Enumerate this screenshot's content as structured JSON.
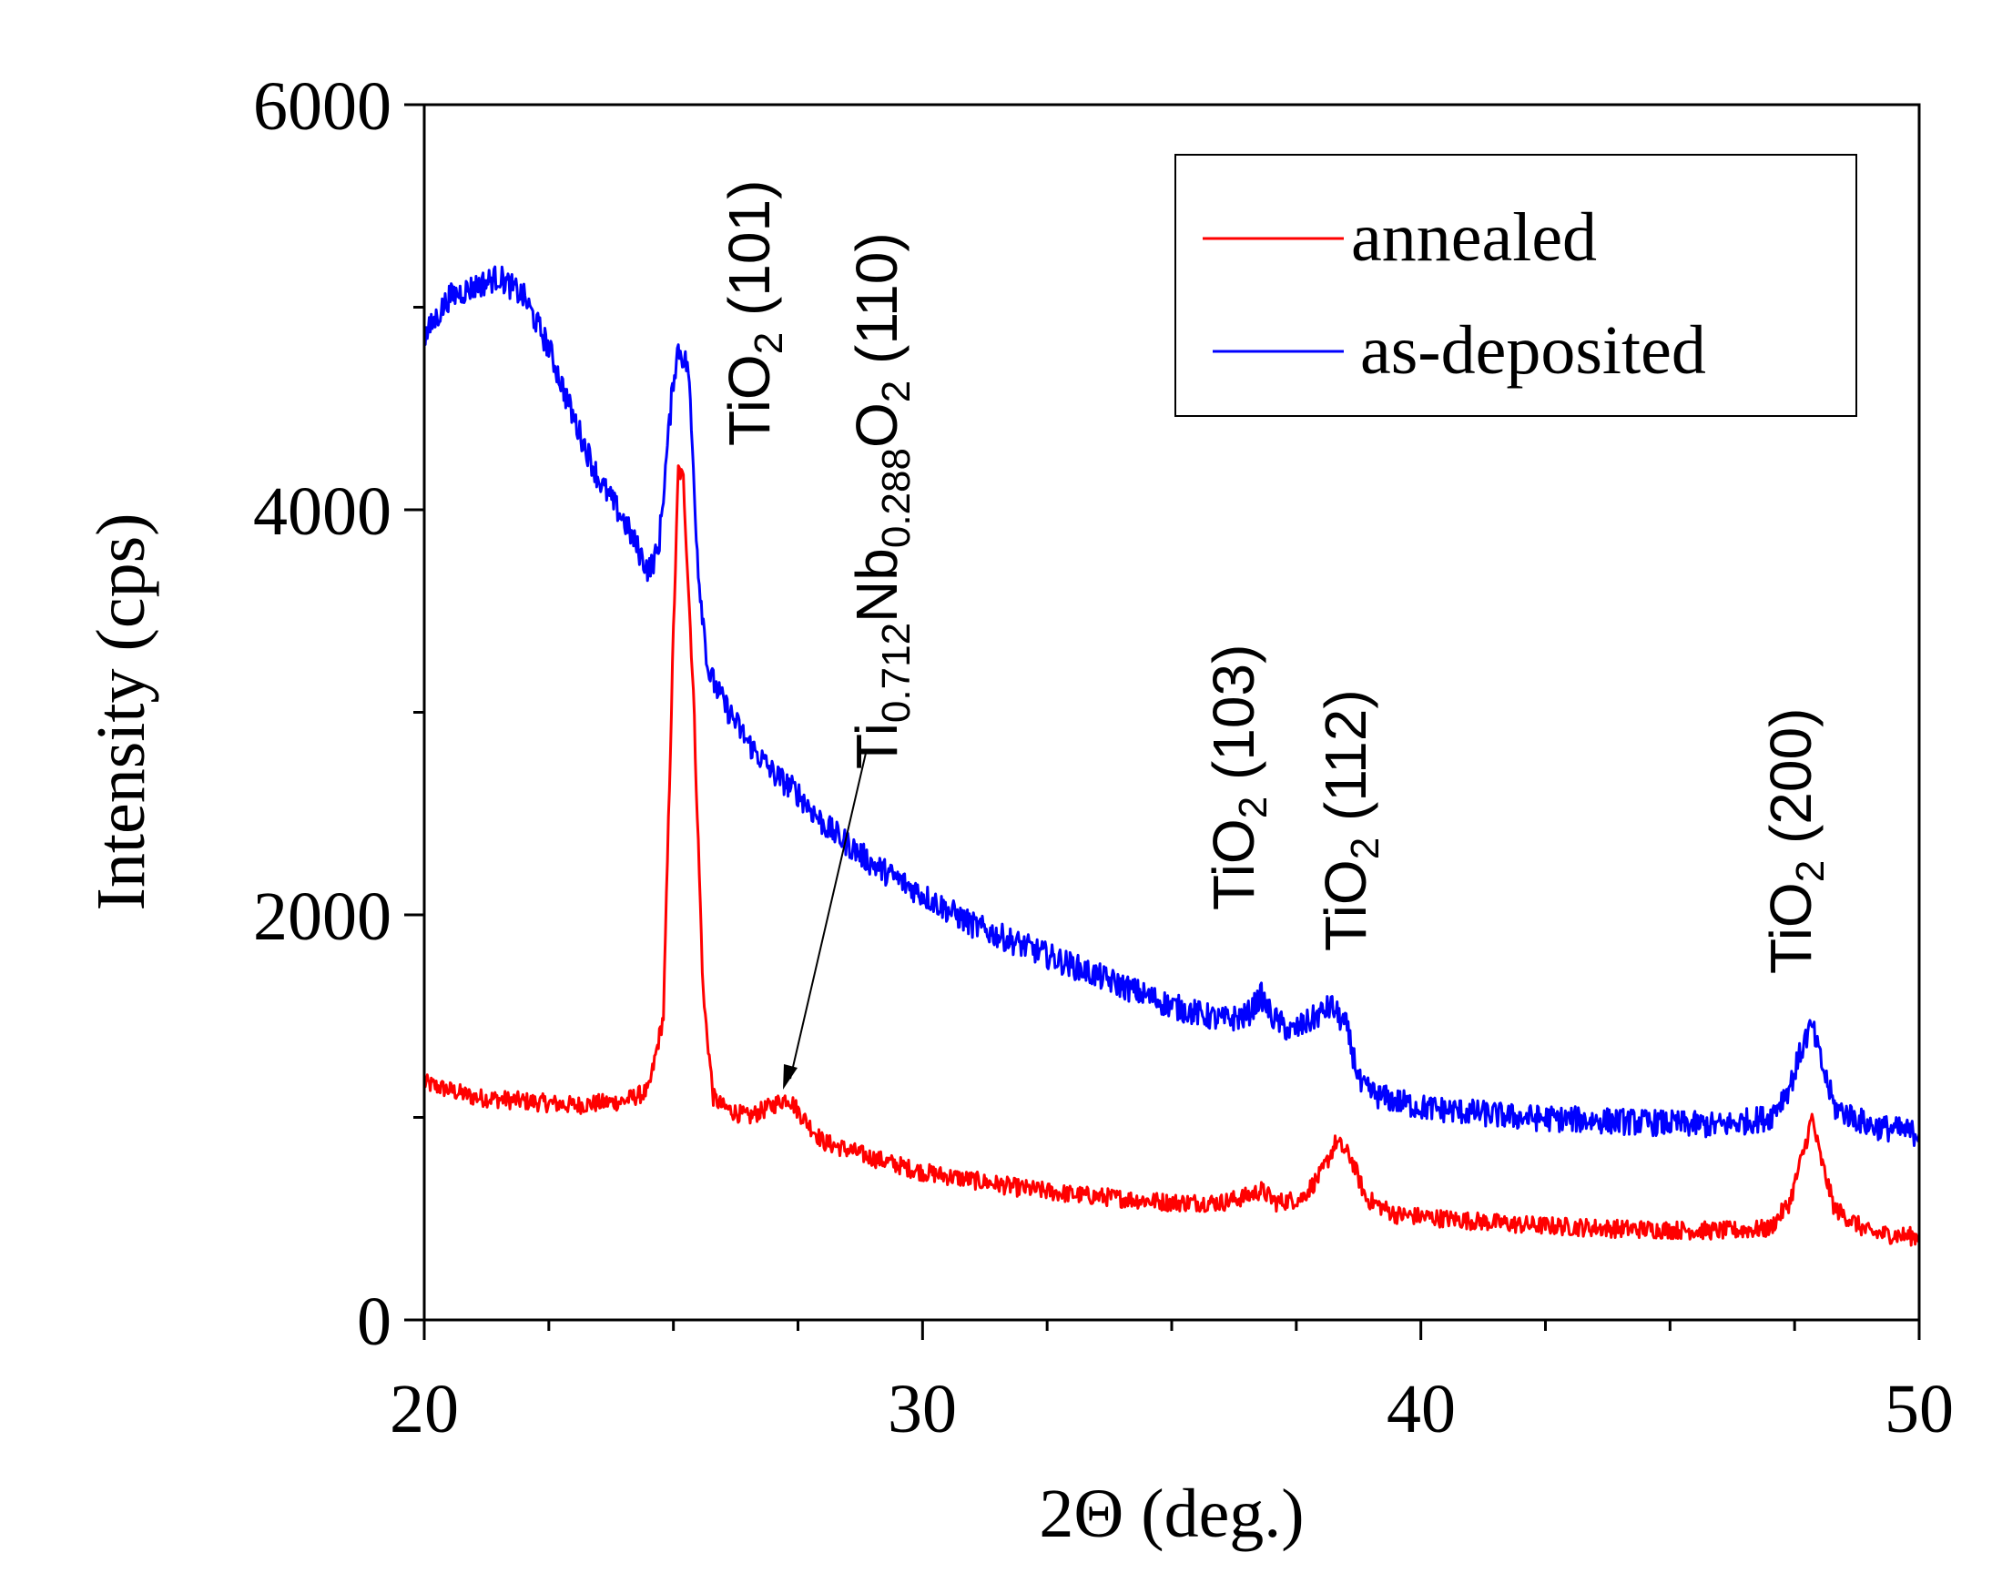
{
  "chart_data": {
    "type": "line",
    "title": "",
    "xlabel": "2Θ (deg.)",
    "ylabel": "Intensity (cps)",
    "xlim": [
      20,
      50
    ],
    "ylim": [
      0,
      6000
    ],
    "x_ticks": [
      20,
      30,
      40,
      50
    ],
    "y_ticks": [
      0,
      2000,
      4000,
      6000
    ],
    "x_tick_labels": [
      "20",
      "30",
      "40",
      "50"
    ],
    "y_tick_labels": [
      "0",
      "2000",
      "4000",
      "6000"
    ],
    "legend": {
      "position": "top-right",
      "entries": [
        "annealed",
        "as-deposited"
      ]
    },
    "grid": false,
    "series": [
      {
        "name": "annealed",
        "color": "#ff0000",
        "points": [
          [
            20,
            1170
          ],
          [
            21,
            1100
          ],
          [
            22,
            1080
          ],
          [
            23,
            1060
          ],
          [
            24,
            1080
          ],
          [
            24.5,
            1130
          ],
          [
            24.8,
            1500
          ],
          [
            25.0,
            3400
          ],
          [
            25.1,
            4200
          ],
          [
            25.2,
            4150
          ],
          [
            25.4,
            3100
          ],
          [
            25.6,
            1600
          ],
          [
            25.8,
            1100
          ],
          [
            26,
            1050
          ],
          [
            26.5,
            1000
          ],
          [
            27,
            1060
          ],
          [
            27.3,
            1100
          ],
          [
            27.6,
            1000
          ],
          [
            28,
            880
          ],
          [
            29,
            800
          ],
          [
            30,
            730
          ],
          [
            31,
            690
          ],
          [
            32,
            650
          ],
          [
            33,
            620
          ],
          [
            34,
            600
          ],
          [
            35,
            580
          ],
          [
            36,
            580
          ],
          [
            36.5,
            610
          ],
          [
            36.8,
            640
          ],
          [
            37.1,
            580
          ],
          [
            37.6,
            600
          ],
          [
            38.0,
            720
          ],
          [
            38.3,
            880
          ],
          [
            38.6,
            800
          ],
          [
            38.9,
            600
          ],
          [
            39.5,
            520
          ],
          [
            40,
            510
          ],
          [
            42,
            470
          ],
          [
            44,
            450
          ],
          [
            46,
            440
          ],
          [
            47,
            450
          ],
          [
            47.4,
            580
          ],
          [
            47.7,
            850
          ],
          [
            47.85,
            1000
          ],
          [
            48.0,
            820
          ],
          [
            48.3,
            550
          ],
          [
            49,
            430
          ],
          [
            50,
            410
          ]
        ]
      },
      {
        "name": "as-deposited",
        "color": "#0000ff",
        "points": [
          [
            20,
            4850
          ],
          [
            20.5,
            5050
          ],
          [
            21,
            5100
          ],
          [
            21.5,
            5150
          ],
          [
            22,
            5050
          ],
          [
            22.5,
            4800
          ],
          [
            23,
            4450
          ],
          [
            23.5,
            4150
          ],
          [
            24,
            3950
          ],
          [
            24.5,
            3700
          ],
          [
            24.7,
            3800
          ],
          [
            25.0,
            4650
          ],
          [
            25.1,
            4800
          ],
          [
            25.3,
            4700
          ],
          [
            25.5,
            3700
          ],
          [
            25.7,
            3200
          ],
          [
            26,
            3050
          ],
          [
            26.5,
            2850
          ],
          [
            27,
            2700
          ],
          [
            27.5,
            2600
          ],
          [
            28,
            2450
          ],
          [
            29,
            2250
          ],
          [
            30,
            2100
          ],
          [
            31,
            1950
          ],
          [
            32,
            1850
          ],
          [
            33,
            1750
          ],
          [
            34,
            1650
          ],
          [
            35,
            1550
          ],
          [
            36,
            1480
          ],
          [
            36.5,
            1500
          ],
          [
            36.8,
            1600
          ],
          [
            37.0,
            1500
          ],
          [
            37.4,
            1420
          ],
          [
            37.8,
            1480
          ],
          [
            38.2,
            1550
          ],
          [
            38.5,
            1450
          ],
          [
            38.8,
            1150
          ],
          [
            39.2,
            1100
          ],
          [
            40,
            1050
          ],
          [
            42,
            1000
          ],
          [
            44,
            980
          ],
          [
            46,
            960
          ],
          [
            47,
            1000
          ],
          [
            47.4,
            1150
          ],
          [
            47.7,
            1380
          ],
          [
            47.85,
            1450
          ],
          [
            48.0,
            1300
          ],
          [
            48.3,
            1050
          ],
          [
            49,
            960
          ],
          [
            50,
            920
          ]
        ]
      }
    ],
    "annotations": {
      "tio2_101": {
        "main": "TiO",
        "sub": "2",
        "hkl": " (101)"
      },
      "tinbo2_110": {
        "p1": "Ti",
        "s1": "0.712",
        "p2": "Nb",
        "s2": "0.288",
        "p3": "O",
        "s3": "2",
        "hkl": " (110)"
      },
      "tio2_103": {
        "main": "TiO",
        "sub": "2",
        "hkl": " (103)"
      },
      "tio2_112": {
        "main": "TiO",
        "sub": "2",
        "hkl": " (112)"
      },
      "tio2_200": {
        "main": "TiO",
        "sub": "2",
        "hkl": " (200)"
      }
    }
  }
}
